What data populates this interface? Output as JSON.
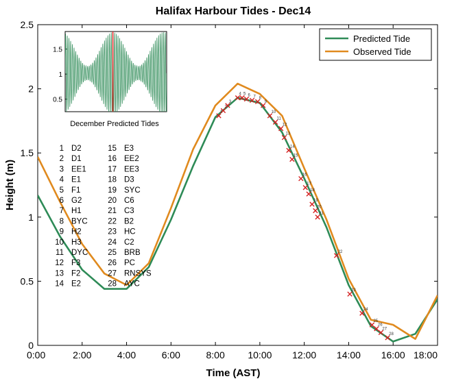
{
  "chart_data": {
    "type": "line",
    "title": "Halifax Harbour Tides - Dec14",
    "xlabel": "Time (AST)",
    "ylabel": "Height (m)",
    "xlim": [
      0,
      18
    ],
    "ylim": [
      0,
      2.5
    ],
    "x_ticks": [
      0,
      2,
      4,
      6,
      8,
      10,
      12,
      14,
      16,
      18
    ],
    "x_tick_labels": [
      "0:00",
      "2:00",
      "4:00",
      "6:00",
      "8:00",
      "10:00",
      "12:00",
      "14:00",
      "16:00",
      "18:00"
    ],
    "y_ticks": [
      0,
      0.5,
      1,
      1.5,
      2,
      2.5
    ],
    "y_tick_labels": [
      "0",
      "0.5",
      "1",
      "1.5",
      "2",
      "2.5"
    ],
    "grid": false,
    "legend_position": "top-right",
    "series": [
      {
        "name": "Predicted Tide",
        "color": "#2e8b57",
        "points": [
          [
            0,
            1.17
          ],
          [
            1,
            0.85
          ],
          [
            2,
            0.59
          ],
          [
            3,
            0.44
          ],
          [
            4,
            0.44
          ],
          [
            5,
            0.61
          ],
          [
            6,
            0.98
          ],
          [
            7,
            1.4
          ],
          [
            8,
            1.78
          ],
          [
            9,
            1.93
          ],
          [
            10,
            1.89
          ],
          [
            11,
            1.66
          ],
          [
            12,
            1.3
          ],
          [
            13,
            0.92
          ],
          [
            14,
            0.47
          ],
          [
            15,
            0.15
          ],
          [
            16,
            0.03
          ],
          [
            17,
            0.09
          ],
          [
            18,
            0.36
          ]
        ]
      },
      {
        "name": "Observed Tide",
        "color": "#e08a1e",
        "points": [
          [
            0,
            1.47
          ],
          [
            1,
            1.12
          ],
          [
            2,
            0.79
          ],
          [
            3,
            0.56
          ],
          [
            4,
            0.47
          ],
          [
            5,
            0.64
          ],
          [
            6,
            1.07
          ],
          [
            7,
            1.53
          ],
          [
            8,
            1.87
          ],
          [
            9,
            2.04
          ],
          [
            10,
            1.96
          ],
          [
            11,
            1.79
          ],
          [
            12,
            1.38
          ],
          [
            13,
            0.98
          ],
          [
            14,
            0.52
          ],
          [
            15,
            0.2
          ],
          [
            16,
            0.16
          ],
          [
            17,
            0.05
          ],
          [
            18,
            0.39
          ]
        ]
      }
    ],
    "markers": [
      {
        "n": 1,
        "t": 8.15,
        "h": 1.79
      },
      {
        "n": 2,
        "t": 8.35,
        "h": 1.83
      },
      {
        "n": 3,
        "t": 8.55,
        "h": 1.87
      },
      {
        "n": 4,
        "t": 9.0,
        "h": 1.93
      },
      {
        "n": 5,
        "t": 9.2,
        "h": 1.93
      },
      {
        "n": 6,
        "t": 9.4,
        "h": 1.92
      },
      {
        "n": 7,
        "t": 9.65,
        "h": 1.91
      },
      {
        "n": 8,
        "t": 9.9,
        "h": 1.9
      },
      {
        "n": 9,
        "t": 10.15,
        "h": 1.87
      },
      {
        "n": 10,
        "t": 10.45,
        "h": 1.79
      },
      {
        "n": 11,
        "t": 10.7,
        "h": 1.74
      },
      {
        "n": 12,
        "t": 10.95,
        "h": 1.69
      },
      {
        "n": 13,
        "t": 11.1,
        "h": 1.62
      },
      {
        "n": 14,
        "t": 11.3,
        "h": 1.52
      },
      {
        "n": 15,
        "t": 11.45,
        "h": 1.45
      },
      {
        "n": 16,
        "t": 11.85,
        "h": 1.3
      },
      {
        "n": 17,
        "t": 12.05,
        "h": 1.23
      },
      {
        "n": 18,
        "t": 12.2,
        "h": 1.18
      },
      {
        "n": 19,
        "t": 12.35,
        "h": 1.1
      },
      {
        "n": 20,
        "t": 12.5,
        "h": 1.05
      },
      {
        "n": 21,
        "t": 12.6,
        "h": 1.0
      },
      {
        "n": 22,
        "t": 13.45,
        "h": 0.7
      },
      {
        "n": 23,
        "t": 14.05,
        "h": 0.4
      },
      {
        "n": 24,
        "t": 14.6,
        "h": 0.25
      },
      {
        "n": 25,
        "t": 15.05,
        "h": 0.16
      },
      {
        "n": 26,
        "t": 15.25,
        "h": 0.13
      },
      {
        "n": 27,
        "t": 15.45,
        "h": 0.1
      },
      {
        "n": 28,
        "t": 15.75,
        "h": 0.06
      }
    ],
    "inset": {
      "caption": "December Predicted Tides",
      "y_ticks": [
        0.5,
        1,
        1.5
      ],
      "y_tick_labels": [
        "0.5",
        "1",
        "1.5"
      ],
      "ylim": [
        0.25,
        1.85
      ],
      "cycles": 60,
      "current_day_fraction": 0.47,
      "color": "#2e8b57",
      "marker_color": "#e53030"
    }
  },
  "stations": [
    {
      "num": "1",
      "code": "D2"
    },
    {
      "num": "2",
      "code": "D1"
    },
    {
      "num": "3",
      "code": "EE1"
    },
    {
      "num": "4",
      "code": "E1"
    },
    {
      "num": "5",
      "code": "F1"
    },
    {
      "num": "6",
      "code": "G2"
    },
    {
      "num": "7",
      "code": "H1"
    },
    {
      "num": "8",
      "code": "BYC"
    },
    {
      "num": "9",
      "code": "H2"
    },
    {
      "num": "10",
      "code": "H3"
    },
    {
      "num": "11",
      "code": "DYC"
    },
    {
      "num": "12",
      "code": "F3"
    },
    {
      "num": "13",
      "code": "F2"
    },
    {
      "num": "14",
      "code": "E2"
    },
    {
      "num": "15",
      "code": "E3"
    },
    {
      "num": "16",
      "code": "EE2"
    },
    {
      "num": "17",
      "code": "EE3"
    },
    {
      "num": "18",
      "code": "D3"
    },
    {
      "num": "19",
      "code": "SYC"
    },
    {
      "num": "20",
      "code": "C6"
    },
    {
      "num": "21",
      "code": "C3"
    },
    {
      "num": "22",
      "code": "B2"
    },
    {
      "num": "23",
      "code": "HC"
    },
    {
      "num": "24",
      "code": "C2"
    },
    {
      "num": "25",
      "code": "BRB"
    },
    {
      "num": "26",
      "code": "PC"
    },
    {
      "num": "27",
      "code": "RNSYS"
    },
    {
      "num": "28",
      "code": "AYC"
    }
  ]
}
